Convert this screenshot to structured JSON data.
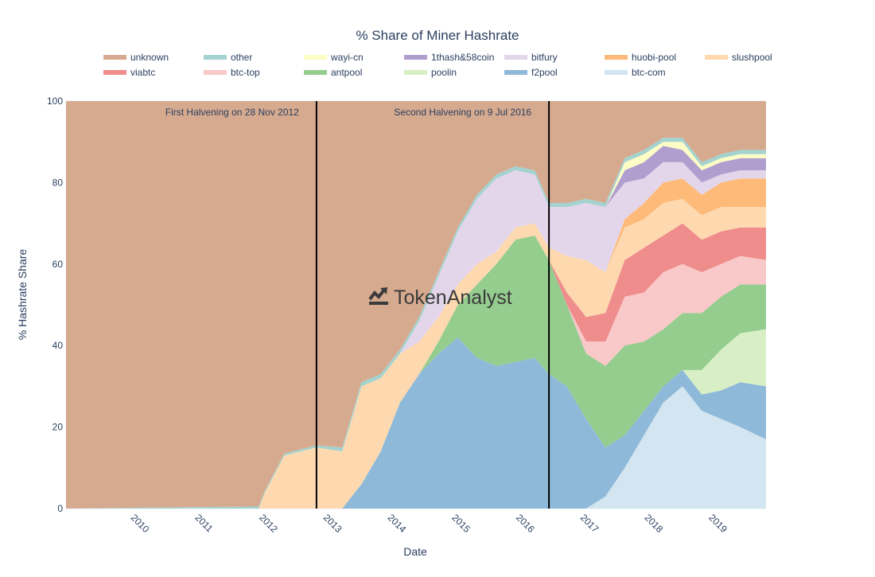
{
  "chart_data": {
    "type": "area",
    "stacked": true,
    "normalized": true,
    "title": "% Share of Miner Hashrate",
    "xlabel": "Date",
    "ylabel": "% Hashrate Share",
    "ylim": [
      0,
      100
    ],
    "xlim": [
      2009.0,
      2019.9
    ],
    "x_ticks": [
      {
        "value": 2010,
        "label": "2010"
      },
      {
        "value": 2011,
        "label": "2011"
      },
      {
        "value": 2012,
        "label": "2012"
      },
      {
        "value": 2013,
        "label": "2013"
      },
      {
        "value": 2014,
        "label": "2014"
      },
      {
        "value": 2015,
        "label": "2015"
      },
      {
        "value": 2016,
        "label": "2016"
      },
      {
        "value": 2017,
        "label": "2017"
      },
      {
        "value": 2018,
        "label": "2018"
      },
      {
        "value": 2019,
        "label": "2019"
      }
    ],
    "y_ticks": [
      {
        "value": 0,
        "label": "0"
      },
      {
        "value": 20,
        "label": "20"
      },
      {
        "value": 40,
        "label": "40"
      },
      {
        "value": 60,
        "label": "60"
      },
      {
        "value": 80,
        "label": "80"
      },
      {
        "value": 100,
        "label": "100"
      }
    ],
    "grid": true,
    "legend_position": "top",
    "watermark": "TokenAnalyst",
    "x": [
      2009.0,
      2012.0,
      2012.1,
      2012.4,
      2012.9,
      2013.3,
      2013.6,
      2013.9,
      2014.2,
      2014.5,
      2014.8,
      2015.1,
      2015.4,
      2015.7,
      2016.0,
      2016.3,
      2016.52,
      2016.8,
      2017.1,
      2017.4,
      2017.7,
      2018.0,
      2018.3,
      2018.6,
      2018.9,
      2019.2,
      2019.5,
      2019.9
    ],
    "series": [
      {
        "name": "btc-com",
        "color": "#d2e5f0",
        "values": [
          0,
          0,
          0,
          0,
          0,
          0,
          0,
          0,
          0,
          0,
          0,
          0,
          0,
          0,
          0,
          0,
          0,
          0,
          0,
          3,
          10,
          18,
          26,
          30,
          24,
          22,
          20,
          17
        ]
      },
      {
        "name": "f2pool",
        "color": "#8fb9d8",
        "values": [
          0,
          0,
          0,
          0,
          0,
          0,
          6,
          14,
          26,
          33,
          38,
          42,
          37,
          35,
          36,
          37,
          33,
          30,
          22,
          12,
          8,
          6,
          4,
          4,
          4,
          7,
          11,
          13
        ]
      },
      {
        "name": "poolin",
        "color": "#d8efc6",
        "values": [
          0,
          0,
          0,
          0,
          0,
          0,
          0,
          0,
          0,
          0,
          0,
          0,
          0,
          0,
          0,
          0,
          0,
          0,
          0,
          0,
          0,
          0,
          0,
          0,
          6,
          10,
          12,
          14
        ]
      },
      {
        "name": "antpool",
        "color": "#95cd8f",
        "values": [
          0,
          0,
          0,
          0,
          0,
          0,
          0,
          0,
          0,
          0,
          3,
          8,
          18,
          25,
          30,
          30,
          28,
          20,
          16,
          20,
          22,
          17,
          14,
          14,
          14,
          13,
          12,
          11
        ]
      },
      {
        "name": "btc-top",
        "color": "#f9c8c9",
        "values": [
          0,
          0,
          0,
          0,
          0,
          0,
          0,
          0,
          0,
          0,
          0,
          0,
          0,
          0,
          0,
          0,
          0,
          0,
          3,
          6,
          12,
          12,
          14,
          12,
          10,
          8,
          7,
          6
        ]
      },
      {
        "name": "viabtc",
        "color": "#ef8c8c",
        "values": [
          0,
          0,
          0,
          0,
          0,
          0,
          0,
          0,
          0,
          0,
          0,
          0,
          0,
          0,
          0,
          0,
          0,
          3,
          6,
          7,
          9,
          11,
          9,
          10,
          8,
          8,
          7,
          8
        ]
      },
      {
        "name": "slushpool",
        "color": "#fed9af",
        "values": [
          0,
          0,
          4,
          13,
          15,
          14,
          24,
          18,
          12,
          8,
          6,
          5,
          5,
          3,
          3,
          3,
          3,
          9,
          14,
          10,
          8,
          7,
          8,
          6,
          6,
          6,
          5,
          5
        ]
      },
      {
        "name": "huobi-pool",
        "color": "#fdba79",
        "values": [
          0,
          0,
          0,
          0,
          0,
          0,
          0,
          0,
          0,
          0,
          0,
          0,
          0,
          0,
          0,
          0,
          0,
          0,
          0,
          0,
          2,
          4,
          5,
          5,
          5,
          6,
          7,
          7
        ]
      },
      {
        "name": "bitfury",
        "color": "#e4d6ea",
        "values": [
          0,
          0,
          0,
          0,
          0,
          0,
          0,
          0,
          0,
          5,
          10,
          13,
          16,
          18,
          14,
          12,
          10,
          12,
          14,
          16,
          9,
          6,
          5,
          4,
          3,
          2,
          2,
          2
        ]
      },
      {
        "name": "1thash&58coin",
        "color": "#b09fce",
        "values": [
          0,
          0,
          0,
          0,
          0,
          0,
          0,
          0,
          0,
          0,
          0,
          0,
          0,
          0,
          0,
          0,
          0,
          0,
          0,
          0,
          3,
          4,
          4,
          3,
          3,
          3,
          3,
          3
        ]
      },
      {
        "name": "wayi-cn",
        "color": "#fdfdc5",
        "values": [
          0,
          0,
          0,
          0,
          0,
          0,
          0,
          0,
          0,
          0,
          0,
          0,
          0,
          0,
          0,
          0,
          0,
          0,
          0,
          0,
          2,
          2,
          1,
          2,
          1,
          1,
          1,
          1
        ]
      },
      {
        "name": "other",
        "color": "#a3d2cf",
        "values": [
          0,
          0.5,
          0.5,
          0.5,
          0.5,
          1,
          1,
          1,
          1,
          1,
          1,
          1,
          1,
          1,
          1,
          1,
          1,
          1,
          1,
          1,
          1,
          1,
          1,
          1,
          1,
          1,
          1,
          1
        ]
      },
      {
        "name": "unknown",
        "color": "#d6aa8f",
        "values": [
          100,
          99.5,
          95.5,
          86.5,
          84.5,
          85,
          69,
          67,
          61,
          53,
          42,
          31,
          23,
          18,
          16,
          17,
          25,
          25,
          24,
          25,
          14,
          12,
          9,
          9,
          15,
          13,
          12,
          12
        ]
      }
    ],
    "annotations": [
      {
        "x": 2012.9,
        "text": "First Halvening on 28 Nov 2012"
      },
      {
        "x": 2016.52,
        "text": "Second Halvening on 9 Jul 2016"
      }
    ]
  },
  "legend_order": [
    "unknown",
    "other",
    "wayi-cn",
    "1thash&58coin",
    "bitfury",
    "huobi-pool",
    "slushpool",
    "viabtc",
    "btc-top",
    "antpool",
    "poolin",
    "f2pool",
    "btc-com"
  ]
}
